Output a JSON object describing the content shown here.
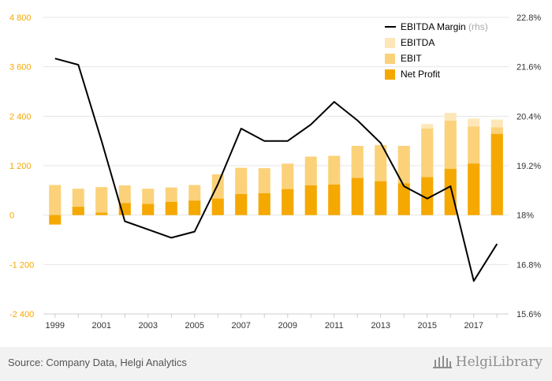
{
  "colors": {
    "ebitda": "#fde7b8",
    "ebit": "#fbd27a",
    "net_profit": "#f5a800",
    "margin_line": "#000000",
    "left_axis_text": "#f5a800",
    "right_axis_text": "#333333",
    "grid": "#e6e6e6"
  },
  "chart_data": {
    "type": "bar",
    "stacked_overlay": true,
    "x": [
      1999,
      2000,
      2001,
      2002,
      2003,
      2004,
      2005,
      2006,
      2007,
      2008,
      2009,
      2010,
      2011,
      2012,
      2013,
      2014,
      2015,
      2016,
      2017,
      2018
    ],
    "x_tick_labels": [
      "1999",
      "2001",
      "2003",
      "2005",
      "2007",
      "2009",
      "2011",
      "2013",
      "2015",
      "2017"
    ],
    "series": [
      {
        "name": "EBITDA",
        "axis": "left",
        "values": [
          470,
          430,
          510,
          390,
          310,
          320,
          390,
          700,
          880,
          880,
          1040,
          1270,
          1310,
          1630,
          1620,
          1680,
          2210,
          2480,
          2340,
          2320
        ]
      },
      {
        "name": "EBIT",
        "axis": "left",
        "values": [
          730,
          640,
          680,
          720,
          640,
          670,
          730,
          990,
          1150,
          1140,
          1250,
          1420,
          1440,
          1680,
          1700,
          1680,
          2100,
          2290,
          2150,
          2130
        ]
      },
      {
        "name": "Net Profit",
        "axis": "left",
        "values": [
          -230,
          200,
          60,
          290,
          270,
          320,
          350,
          400,
          510,
          530,
          630,
          720,
          740,
          900,
          820,
          770,
          920,
          1120,
          1250,
          1970
        ]
      },
      {
        "name": "EBITDA Margin",
        "name_suffix": "(rhs)",
        "axis": "right",
        "type": "line",
        "values": [
          21.8,
          21.65,
          19.8,
          17.85,
          17.65,
          17.45,
          17.6,
          18.75,
          20.1,
          19.8,
          19.8,
          20.2,
          20.75,
          20.3,
          19.75,
          18.7,
          18.4,
          18.7,
          16.4,
          17.3
        ]
      }
    ],
    "left_axis": {
      "ylim": [
        -2400,
        4800
      ],
      "ticks": [
        -2400,
        -1200,
        0,
        1200,
        2400,
        3600,
        4800
      ],
      "tick_labels": [
        "-2 400",
        "-1 200",
        "0",
        "1 200",
        "2 400",
        "3 600",
        "4 800"
      ]
    },
    "right_axis": {
      "ylim": [
        15.6,
        22.8
      ],
      "ticks": [
        15.6,
        16.8,
        18,
        19.2,
        20.4,
        21.6,
        22.8
      ],
      "tick_labels": [
        "15.6%",
        "16.8%",
        "18%",
        "19.2%",
        "20.4%",
        "21.6%",
        "22.8%"
      ]
    },
    "legend_position": "top-right",
    "grid": true
  },
  "footer": {
    "source": "Source: Company Data, Helgi Analytics",
    "logo_text": "HelgiLibrary"
  }
}
